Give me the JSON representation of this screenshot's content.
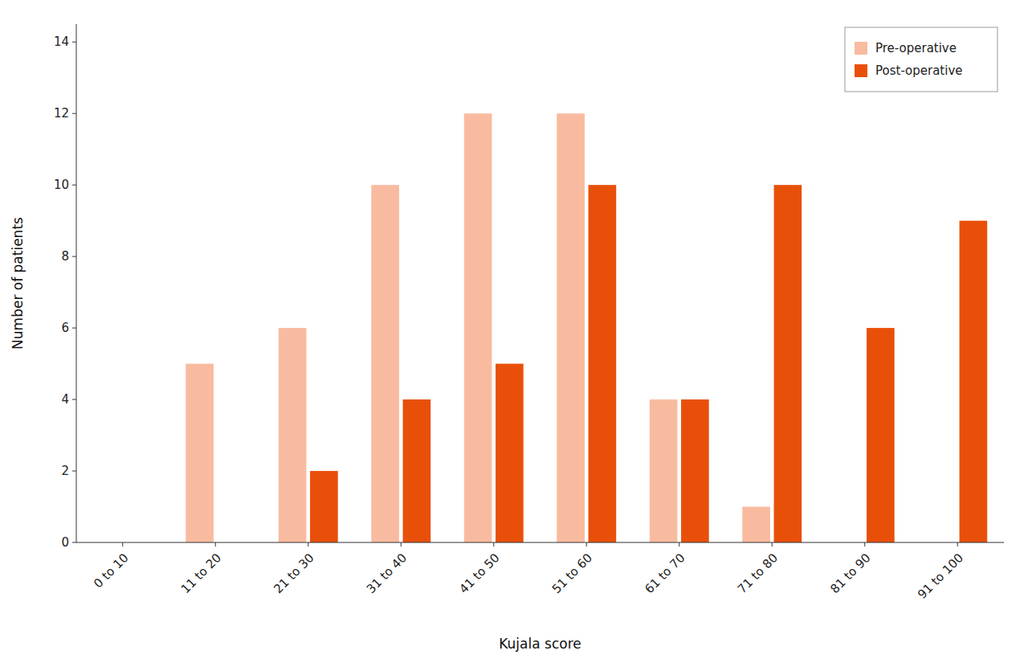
{
  "chart_data": {
    "type": "bar",
    "xlabel": "Kujala score",
    "ylabel": "Number of patients",
    "categories": [
      "0 to 10",
      "11 to 20",
      "21 to 30",
      "31 to 40",
      "41 to 50",
      "51 to 60",
      "61 to 70",
      "71 to 80",
      "81 to 90",
      "91 to 100"
    ],
    "series": [
      {
        "name": "Pre-operative",
        "color": "#F9BBA0",
        "values": [
          0,
          5,
          6,
          10,
          12,
          12,
          4,
          1,
          0,
          0
        ]
      },
      {
        "name": "Post-operative",
        "color": "#E8500A",
        "values": [
          0,
          0,
          2,
          4,
          5,
          10,
          4,
          10,
          6,
          9
        ]
      }
    ],
    "ylim": [
      0,
      14.5
    ],
    "yticks": [
      0,
      2,
      4,
      6,
      8,
      10,
      12,
      14
    ],
    "grid": false,
    "legend": "upper right"
  }
}
